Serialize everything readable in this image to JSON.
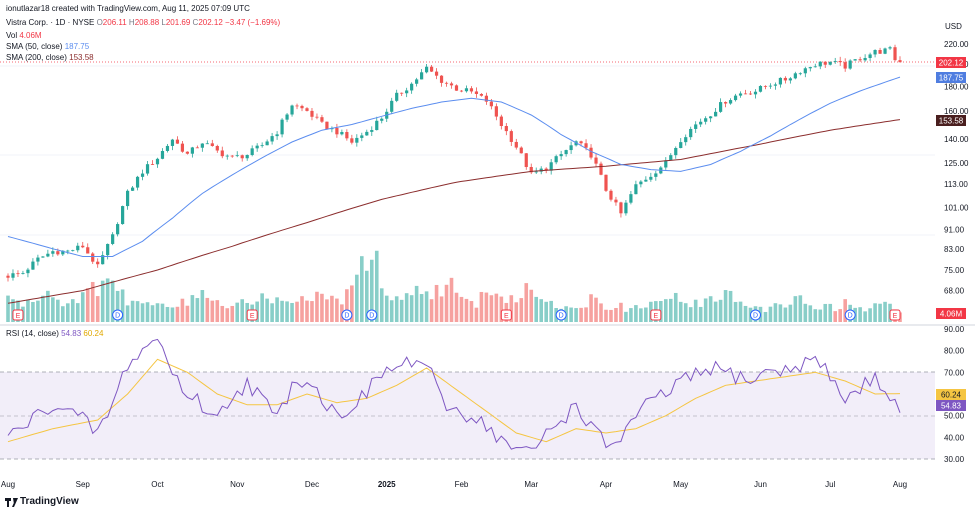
{
  "header": {
    "credit": "ionutlazar18 created with TradingView.com, Aug 11, 2025 07:09 UTC",
    "symbol": "Vistra Corp. · 1D · NYSE",
    "o_label": "O",
    "o": "206.11",
    "h_label": "H",
    "h": "208.88",
    "l_label": "L",
    "l": "201.69",
    "c_label": "C",
    "c": "202.12",
    "change": "−3.47 (−1.69%)",
    "vol_label": "Vol",
    "vol": "4.06M",
    "sma50_label": "SMA (50, close)",
    "sma50": "187.75",
    "sma200_label": "SMA (200, close)",
    "sma200": "153.58",
    "rsi_label": "RSI (14, close)",
    "rsi": "54.83",
    "rsi_ma": "60.24"
  },
  "currency": "USD",
  "price_ticks": [
    "220.00",
    "200.00",
    "180.00",
    "160.00",
    "140.00",
    "125.00",
    "113.00",
    "101.00",
    "91.00",
    "83.00",
    "75.00",
    "68.00"
  ],
  "rsi_ticks": [
    "90.00",
    "80.00",
    "70.00",
    "50.00",
    "40.00",
    "30.00"
  ],
  "x_labels": [
    "Aug",
    "Sep",
    "Oct",
    "Nov",
    "Dec",
    "2025",
    "Feb",
    "Mar",
    "Apr",
    "May",
    "Jun",
    "Jul",
    "Aug"
  ],
  "price_badges": {
    "close": "202.12",
    "sma50": "187.75",
    "sma200": "153.58",
    "volume": "4.06M"
  },
  "rsi_badges": {
    "rsi_ma": "60.24",
    "rsi": "54.83"
  },
  "event_markers": [
    {
      "month": "Aug",
      "type": "E"
    },
    {
      "month": "Sep",
      "type": "D"
    },
    {
      "month": "Nov",
      "type": "E"
    },
    {
      "month": "Dec",
      "type": "D"
    },
    {
      "month": "2025",
      "type": "D"
    },
    {
      "month": "Feb",
      "type": "E"
    },
    {
      "month": "Mar",
      "type": "D"
    },
    {
      "month": "May",
      "type": "E"
    },
    {
      "month": "Jun",
      "type": "D"
    },
    {
      "month": "Jul",
      "type": "D"
    },
    {
      "month": "Aug",
      "type": "E"
    }
  ],
  "footer_brand": "TradingView",
  "colors": {
    "up": "#26a69a",
    "down": "#ef5350",
    "sma50": "#5b8def",
    "sma200": "#8b2d2d",
    "rsi": "#7e57c2",
    "rsi_ma": "#f5c542",
    "last_close": "#f23645"
  },
  "chart_data": {
    "type": "candlestick",
    "log_scale": true,
    "ylim": [
      62,
      232
    ],
    "x": [
      "Aug",
      "Sep",
      "Oct",
      "Nov",
      "Dec",
      "2025",
      "Feb",
      "Mar",
      "Apr",
      "May",
      "Jun",
      "Jul",
      "Aug"
    ],
    "close_path": [
      [
        0,
        73
      ],
      [
        3,
        74
      ],
      [
        6,
        79
      ],
      [
        9,
        82
      ],
      [
        12,
        82
      ],
      [
        15,
        84
      ],
      [
        18,
        76
      ],
      [
        21,
        88
      ],
      [
        24,
        108
      ],
      [
        27,
        120
      ],
      [
        30,
        128
      ],
      [
        33,
        140
      ],
      [
        36,
        130
      ],
      [
        39,
        138
      ],
      [
        42,
        132
      ],
      [
        45,
        128
      ],
      [
        48,
        130
      ],
      [
        51,
        136
      ],
      [
        54,
        145
      ],
      [
        57,
        165
      ],
      [
        60,
        160
      ],
      [
        63,
        150
      ],
      [
        66,
        145
      ],
      [
        69,
        138
      ],
      [
        72,
        145
      ],
      [
        75,
        155
      ],
      [
        78,
        172
      ],
      [
        81,
        182
      ],
      [
        84,
        196
      ],
      [
        87,
        185
      ],
      [
        90,
        178
      ],
      [
        93,
        175
      ],
      [
        96,
        168
      ],
      [
        99,
        150
      ],
      [
        102,
        135
      ],
      [
        105,
        118
      ],
      [
        108,
        122
      ],
      [
        111,
        130
      ],
      [
        114,
        138
      ],
      [
        117,
        130
      ],
      [
        120,
        110
      ],
      [
        123,
        98
      ],
      [
        126,
        112
      ],
      [
        129,
        118
      ],
      [
        132,
        125
      ],
      [
        135,
        140
      ],
      [
        138,
        150
      ],
      [
        141,
        158
      ],
      [
        144,
        168
      ],
      [
        147,
        174
      ],
      [
        150,
        176
      ],
      [
        153,
        182
      ],
      [
        156,
        186
      ],
      [
        159,
        194
      ],
      [
        162,
        200
      ],
      [
        165,
        202
      ],
      [
        168,
        198
      ],
      [
        171,
        206
      ],
      [
        174,
        212
      ],
      [
        177,
        214
      ],
      [
        178,
        205
      ],
      [
        179,
        202
      ]
    ],
    "sma50_path": [
      [
        0,
        88
      ],
      [
        9,
        83
      ],
      [
        15,
        80
      ],
      [
        21,
        80
      ],
      [
        27,
        86
      ],
      [
        33,
        96
      ],
      [
        39,
        108
      ],
      [
        45,
        118
      ],
      [
        51,
        128
      ],
      [
        57,
        138
      ],
      [
        63,
        146
      ],
      [
        69,
        150
      ],
      [
        75,
        156
      ],
      [
        81,
        162
      ],
      [
        87,
        167
      ],
      [
        93,
        170
      ],
      [
        99,
        167
      ],
      [
        105,
        157
      ],
      [
        111,
        143
      ],
      [
        117,
        132
      ],
      [
        123,
        124
      ],
      [
        129,
        121
      ],
      [
        135,
        120
      ],
      [
        141,
        124
      ],
      [
        147,
        132
      ],
      [
        153,
        142
      ],
      [
        159,
        154
      ],
      [
        165,
        166
      ],
      [
        171,
        176
      ],
      [
        179,
        188
      ]
    ],
    "sma200_path": [
      [
        0,
        64
      ],
      [
        15,
        68
      ],
      [
        30,
        75
      ],
      [
        45,
        84
      ],
      [
        60,
        94
      ],
      [
        75,
        105
      ],
      [
        90,
        114
      ],
      [
        105,
        120
      ],
      [
        120,
        123
      ],
      [
        135,
        127
      ],
      [
        150,
        136
      ],
      [
        165,
        146
      ],
      [
        179,
        153.6
      ]
    ],
    "volume_m": [
      8,
      6,
      7,
      9,
      10,
      7,
      6,
      8,
      9,
      11,
      16,
      14,
      9,
      7,
      6,
      7,
      8,
      6,
      5,
      7,
      9,
      12,
      8,
      6,
      5,
      6,
      7,
      8,
      9,
      7,
      6,
      8,
      7,
      6,
      9,
      8,
      7,
      10,
      13,
      20,
      24,
      9,
      7,
      6,
      8,
      10,
      9,
      11,
      12,
      8,
      7,
      6,
      9,
      10,
      8,
      7,
      8,
      11,
      9,
      7,
      6,
      5,
      4,
      6,
      8,
      7,
      5,
      6,
      4,
      5,
      6,
      7,
      9,
      8,
      7,
      6,
      5,
      7,
      8,
      9,
      7,
      6,
      5,
      4,
      5,
      6,
      7,
      8,
      6,
      4,
      5,
      4,
      6,
      5,
      4,
      5,
      6,
      5,
      4
    ],
    "rsi_path": [
      [
        0,
        40
      ],
      [
        3,
        45
      ],
      [
        6,
        50
      ],
      [
        9,
        56
      ],
      [
        12,
        52
      ],
      [
        15,
        48
      ],
      [
        18,
        42
      ],
      [
        21,
        55
      ],
      [
        24,
        74
      ],
      [
        27,
        80
      ],
      [
        30,
        86
      ],
      [
        33,
        70
      ],
      [
        36,
        60
      ],
      [
        39,
        55
      ],
      [
        42,
        48
      ],
      [
        45,
        60
      ],
      [
        48,
        65
      ],
      [
        51,
        58
      ],
      [
        54,
        48
      ],
      [
        57,
        65
      ],
      [
        60,
        68
      ],
      [
        63,
        58
      ],
      [
        66,
        50
      ],
      [
        69,
        55
      ],
      [
        72,
        60
      ],
      [
        75,
        70
      ],
      [
        78,
        72
      ],
      [
        81,
        75
      ],
      [
        84,
        74
      ],
      [
        87,
        56
      ],
      [
        90,
        52
      ],
      [
        93,
        50
      ],
      [
        96,
        46
      ],
      [
        99,
        38
      ],
      [
        102,
        35
      ],
      [
        105,
        32
      ],
      [
        108,
        42
      ],
      [
        111,
        48
      ],
      [
        114,
        55
      ],
      [
        117,
        45
      ],
      [
        120,
        36
      ],
      [
        123,
        40
      ],
      [
        126,
        50
      ],
      [
        129,
        56
      ],
      [
        132,
        60
      ],
      [
        135,
        66
      ],
      [
        138,
        68
      ],
      [
        141,
        72
      ],
      [
        144,
        70
      ],
      [
        147,
        68
      ],
      [
        150,
        66
      ],
      [
        153,
        72
      ],
      [
        156,
        70
      ],
      [
        159,
        74
      ],
      [
        162,
        76
      ],
      [
        165,
        68
      ],
      [
        168,
        58
      ],
      [
        171,
        62
      ],
      [
        174,
        69
      ],
      [
        177,
        58
      ],
      [
        179,
        54.8
      ]
    ],
    "rsi_ma_path": [
      [
        0,
        38
      ],
      [
        9,
        44
      ],
      [
        18,
        48
      ],
      [
        24,
        60
      ],
      [
        30,
        76
      ],
      [
        36,
        70
      ],
      [
        42,
        60
      ],
      [
        48,
        55
      ],
      [
        54,
        55
      ],
      [
        60,
        60
      ],
      [
        66,
        56
      ],
      [
        72,
        58
      ],
      [
        78,
        64
      ],
      [
        84,
        72
      ],
      [
        90,
        62
      ],
      [
        96,
        52
      ],
      [
        102,
        42
      ],
      [
        108,
        38
      ],
      [
        114,
        44
      ],
      [
        120,
        42
      ],
      [
        126,
        44
      ],
      [
        132,
        50
      ],
      [
        138,
        58
      ],
      [
        144,
        64
      ],
      [
        150,
        66
      ],
      [
        156,
        68
      ],
      [
        162,
        70
      ],
      [
        168,
        66
      ],
      [
        174,
        60
      ],
      [
        179,
        60.2
      ]
    ]
  }
}
